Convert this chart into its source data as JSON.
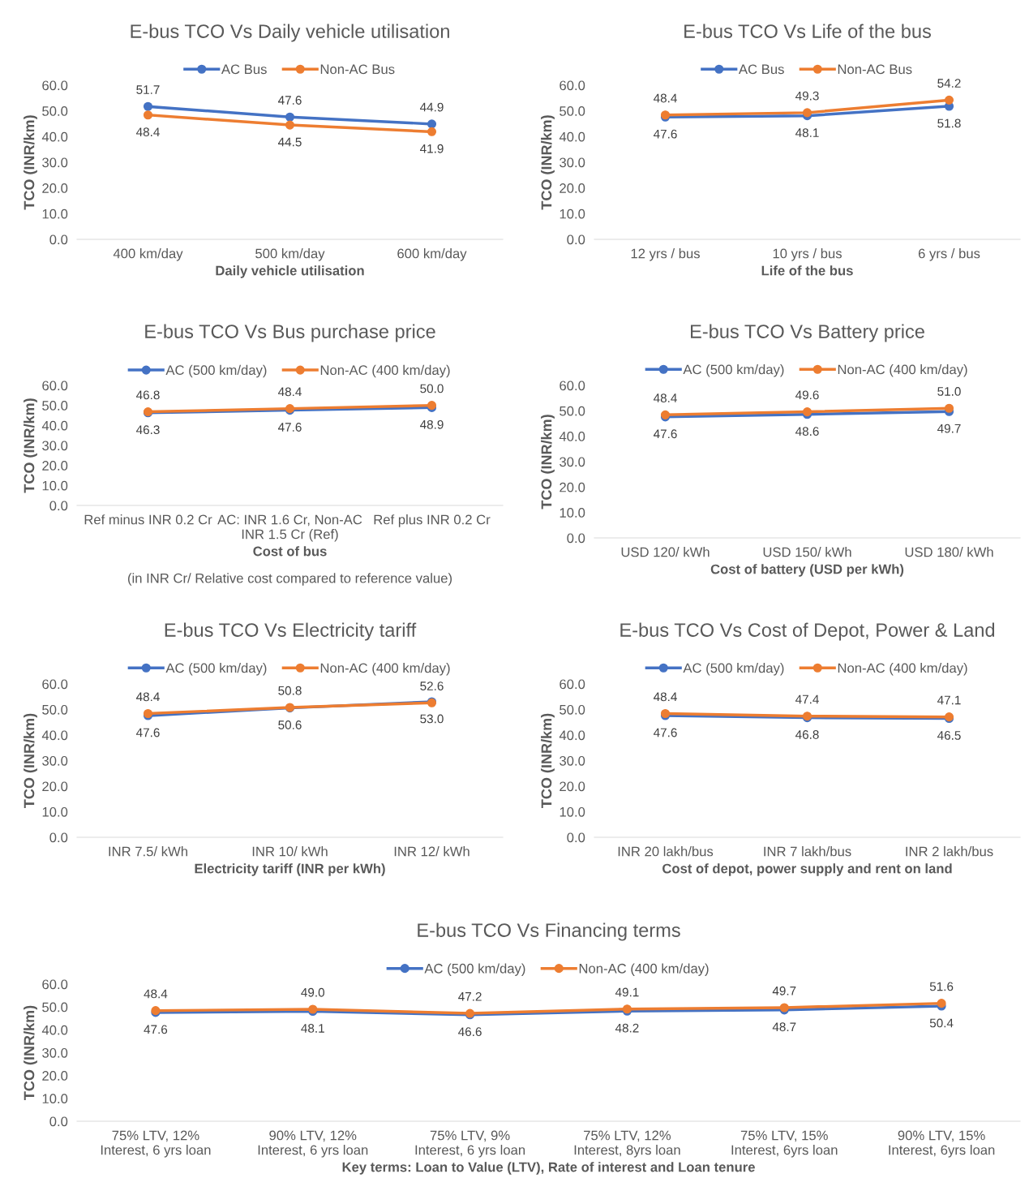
{
  "chart_data": [
    {
      "type": "line",
      "title": "E-bus TCO Vs Daily vehicle utilisation",
      "xlabel": "Daily vehicle utilisation",
      "ylabel": "TCO (INR/km)",
      "categories": [
        "400 km/day",
        "500 km/day",
        "600 km/day"
      ],
      "series": [
        {
          "name": "AC Bus",
          "color": "#4472c4",
          "values": [
            51.7,
            47.6,
            44.9
          ],
          "value_labels": [
            "51.7",
            "47.6",
            "44.9"
          ]
        },
        {
          "name": "Non-AC Bus",
          "color": "#ed7d31",
          "values": [
            48.4,
            44.5,
            41.9
          ],
          "value_labels": [
            "48.4",
            "44.5",
            "41.9"
          ]
        }
      ],
      "ylim": [
        0,
        60
      ],
      "yticks": [
        {
          "value": 0,
          "label": "0.0"
        },
        {
          "value": 10,
          "label": "10.0"
        },
        {
          "value": 20,
          "label": "20.0"
        },
        {
          "value": 30,
          "label": "30.0"
        },
        {
          "value": 40,
          "label": "40.0"
        },
        {
          "value": 50,
          "label": "50.0"
        },
        {
          "value": 60,
          "label": "60.0"
        }
      ],
      "marker": "circle",
      "legend": "top",
      "grid": false
    },
    {
      "type": "line",
      "title": "E-bus TCO Vs Life of the bus",
      "xlabel": "Life of the bus",
      "ylabel": "TCO (INR/km)",
      "categories": [
        "12 yrs / bus",
        "10 yrs / bus",
        "6 yrs / bus"
      ],
      "series": [
        {
          "name": "AC Bus",
          "color": "#4472c4",
          "values": [
            47.6,
            48.1,
            51.8
          ],
          "value_labels": [
            "47.6",
            "48.1",
            "51.8"
          ]
        },
        {
          "name": "Non-AC Bus",
          "color": "#ed7d31",
          "values": [
            48.4,
            49.3,
            54.2
          ],
          "value_labels": [
            "48.4",
            "49.3",
            "54.2"
          ]
        }
      ],
      "ylim": [
        0,
        60
      ],
      "yticks": [
        {
          "value": 0,
          "label": "0.0"
        },
        {
          "value": 10,
          "label": "10.0"
        },
        {
          "value": 20,
          "label": "20.0"
        },
        {
          "value": 30,
          "label": "30.0"
        },
        {
          "value": 40,
          "label": "40.0"
        },
        {
          "value": 50,
          "label": "50.0"
        },
        {
          "value": 60,
          "label": "60.0"
        }
      ],
      "marker": "circle",
      "legend": "top",
      "grid": false
    },
    {
      "type": "line",
      "title": "E-bus TCO Vs Bus purchase price",
      "xlabel": "Cost of bus",
      "ylabel": "TCO (INR/km)",
      "annotations": [
        "(in INR Cr/ Relative cost compared to reference value)"
      ],
      "categories": [
        "Ref minus INR 0.2 Cr",
        "AC: INR 1.6 Cr, Non-AC INR 1.5 Cr (Ref)",
        "Ref plus INR 0.2 Cr"
      ],
      "series": [
        {
          "name": "AC (500 km/day)",
          "color": "#4472c4",
          "values": [
            46.3,
            47.6,
            48.9
          ],
          "value_labels": [
            "46.3",
            "47.6",
            "48.9"
          ]
        },
        {
          "name": "Non-AC (400 km/day)",
          "color": "#ed7d31",
          "values": [
            46.8,
            48.4,
            50.0
          ],
          "value_labels": [
            "46.8",
            "48.4",
            "50.0"
          ]
        }
      ],
      "ylim": [
        0,
        60
      ],
      "yticks": [
        {
          "value": 0,
          "label": "0.0"
        },
        {
          "value": 10,
          "label": "10.0"
        },
        {
          "value": 20,
          "label": "20.0"
        },
        {
          "value": 30,
          "label": "30.0"
        },
        {
          "value": 40,
          "label": "40.0"
        },
        {
          "value": 50,
          "label": "50.0"
        },
        {
          "value": 60,
          "label": "60.0"
        }
      ],
      "marker": "circle",
      "legend": "top",
      "grid": false
    },
    {
      "type": "line",
      "title": "E-bus TCO Vs Battery price",
      "xlabel": "Cost of battery (USD per kWh)",
      "ylabel": "TCO (INR/km)",
      "categories": [
        "USD 120/ kWh",
        "USD 150/ kWh",
        "USD 180/ kWh"
      ],
      "series": [
        {
          "name": "AC (500 km/day)",
          "color": "#4472c4",
          "values": [
            47.6,
            48.6,
            49.7
          ],
          "value_labels": [
            "47.6",
            "48.6",
            "49.7"
          ]
        },
        {
          "name": "Non-AC (400 km/day)",
          "color": "#ed7d31",
          "values": [
            48.4,
            49.6,
            51.0
          ],
          "value_labels": [
            "48.4",
            "49.6",
            "51.0"
          ]
        }
      ],
      "ylim": [
        0,
        60
      ],
      "yticks": [
        {
          "value": 0,
          "label": "0.0"
        },
        {
          "value": 10,
          "label": "10.0"
        },
        {
          "value": 20,
          "label": "20.0"
        },
        {
          "value": 30,
          "label": "30.0"
        },
        {
          "value": 40,
          "label": "40.0"
        },
        {
          "value": 50,
          "label": "50.0"
        },
        {
          "value": 60,
          "label": "60.0"
        }
      ],
      "marker": "circle",
      "legend": "top",
      "grid": false
    },
    {
      "type": "line",
      "title": "E-bus TCO Vs Electricity tariff",
      "xlabel": "Electricity tariff (INR per kWh)",
      "ylabel": "TCO (INR/km)",
      "categories": [
        "INR 7.5/ kWh",
        "INR 10/ kWh",
        "INR 12/ kWh"
      ],
      "series": [
        {
          "name": "AC (500 km/day)",
          "color": "#4472c4",
          "values": [
            47.6,
            50.6,
            53.0
          ],
          "value_labels": [
            "47.6",
            "50.6",
            "53.0"
          ]
        },
        {
          "name": "Non-AC (400 km/day)",
          "color": "#ed7d31",
          "values": [
            48.4,
            50.8,
            52.6
          ],
          "value_labels": [
            "48.4",
            "50.8",
            "52.6"
          ]
        }
      ],
      "ylim": [
        0,
        60
      ],
      "yticks": [
        {
          "value": 0,
          "label": "0.0"
        },
        {
          "value": 10,
          "label": "10.0"
        },
        {
          "value": 20,
          "label": "20.0"
        },
        {
          "value": 30,
          "label": "30.0"
        },
        {
          "value": 40,
          "label": "40.0"
        },
        {
          "value": 50,
          "label": "50.0"
        },
        {
          "value": 60,
          "label": "60.0"
        }
      ],
      "marker": "circle",
      "legend": "top",
      "grid": false
    },
    {
      "type": "line",
      "title": "E-bus TCO Vs Cost of Depot, Power & Land",
      "xlabel": "Cost of depot, power supply and rent on land",
      "ylabel": "TCO (INR/km)",
      "categories": [
        "INR 20 lakh/bus",
        "INR 7 lakh/bus",
        "INR 2 lakh/bus"
      ],
      "series": [
        {
          "name": "AC (500 km/day)",
          "color": "#4472c4",
          "values": [
            47.6,
            46.8,
            46.5
          ],
          "value_labels": [
            "47.6",
            "46.8",
            "46.5"
          ]
        },
        {
          "name": "Non-AC (400 km/day)",
          "color": "#ed7d31",
          "values": [
            48.4,
            47.4,
            47.1
          ],
          "value_labels": [
            "48.4",
            "47.4",
            "47.1"
          ]
        }
      ],
      "ylim": [
        0,
        60
      ],
      "yticks": [
        {
          "value": 0,
          "label": "0.0"
        },
        {
          "value": 10,
          "label": "10.0"
        },
        {
          "value": 20,
          "label": "20.0"
        },
        {
          "value": 30,
          "label": "30.0"
        },
        {
          "value": 40,
          "label": "40.0"
        },
        {
          "value": 50,
          "label": "50.0"
        },
        {
          "value": 60,
          "label": "60.0"
        }
      ],
      "marker": "circle",
      "legend": "top",
      "grid": false
    },
    {
      "type": "line",
      "title": "E-bus TCO Vs Financing terms",
      "xlabel": "Key terms: Loan to Value (LTV), Rate of interest and Loan tenure",
      "ylabel": "TCO (INR/km)",
      "categories": [
        "75% LTV, 12% Interest, 6 yrs loan",
        "90% LTV, 12% Interest, 6 yrs loan",
        "75% LTV, 9% Interest, 6 yrs loan",
        "75% LTV, 12% Interest, 8yrs loan",
        "75% LTV, 15% Interest, 6yrs loan",
        "90% LTV, 15% Interest, 6yrs loan"
      ],
      "series": [
        {
          "name": "AC (500 km/day)",
          "color": "#4472c4",
          "values": [
            47.6,
            48.1,
            46.6,
            48.2,
            48.7,
            50.4
          ],
          "value_labels": [
            "47.6",
            "48.1",
            "46.6",
            "48.2",
            "48.7",
            "50.4"
          ]
        },
        {
          "name": "Non-AC (400 km/day)",
          "color": "#ed7d31",
          "values": [
            48.4,
            49.0,
            47.2,
            49.1,
            49.7,
            51.6
          ],
          "value_labels": [
            "48.4",
            "49.0",
            "47.2",
            "49.1",
            "49.7",
            "51.6"
          ]
        }
      ],
      "ylim": [
        0,
        60
      ],
      "yticks": [
        {
          "value": 0,
          "label": "0.0"
        },
        {
          "value": 10,
          "label": "10.0"
        },
        {
          "value": 20,
          "label": "20.0"
        },
        {
          "value": 30,
          "label": "30.0"
        },
        {
          "value": 40,
          "label": "40.0"
        },
        {
          "value": 50,
          "label": "50.0"
        },
        {
          "value": 60,
          "label": "60.0"
        }
      ],
      "marker": "circle",
      "legend": "top",
      "grid": false
    }
  ]
}
